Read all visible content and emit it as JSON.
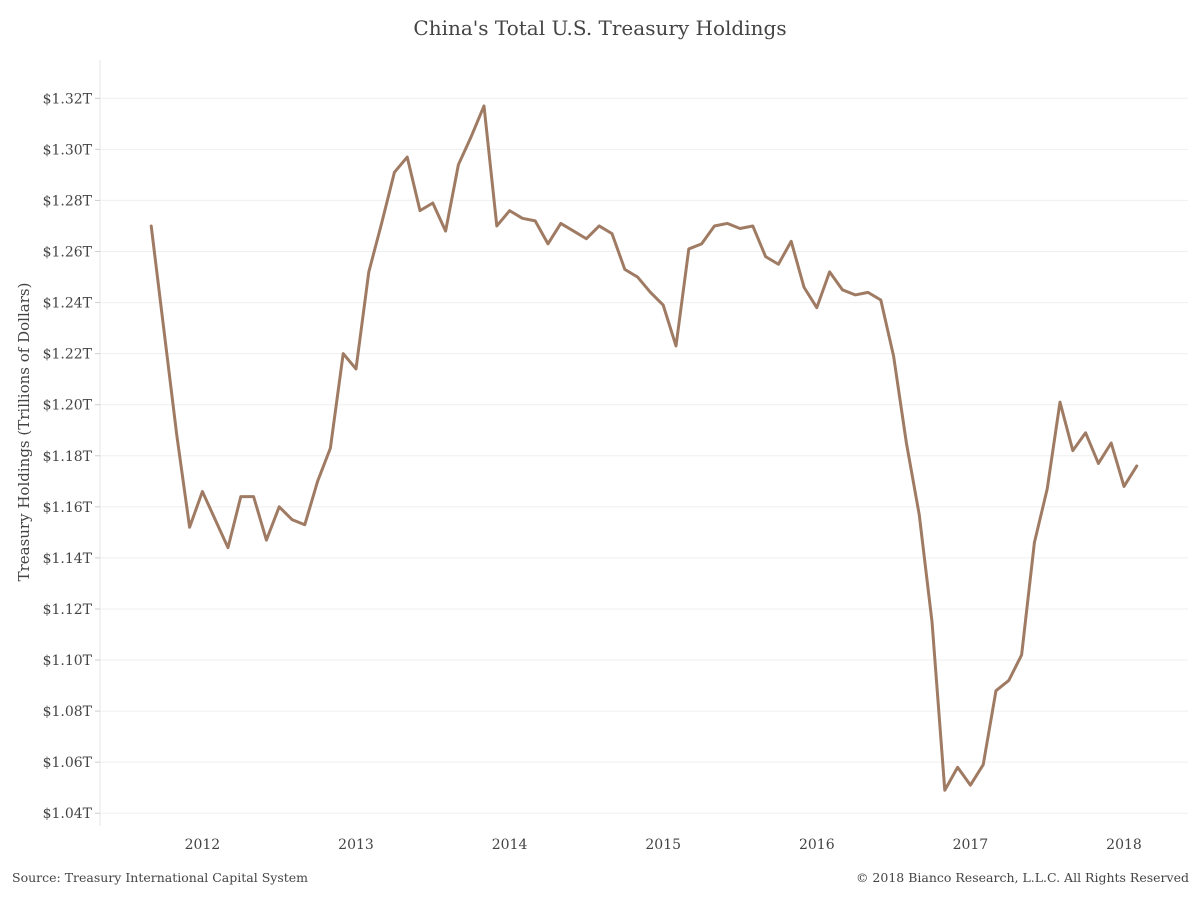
{
  "chart_data": {
    "type": "line",
    "title": "China's Total U.S. Treasury Holdings",
    "xlabel": "",
    "ylabel": "Treasury Holdings (Trillions of Dollars)",
    "x_tick_labels": [
      "2012",
      "2013",
      "2014",
      "2015",
      "2016",
      "2017",
      "2018"
    ],
    "y_tick_labels": [
      "$1.04T",
      "$1.06T",
      "$1.08T",
      "$1.10T",
      "$1.12T",
      "$1.14T",
      "$1.16T",
      "$1.18T",
      "$1.20T",
      "$1.22T",
      "$1.24T",
      "$1.26T",
      "$1.28T",
      "$1.30T",
      "$1.32T"
    ],
    "y_tick_values": [
      1.04,
      1.06,
      1.08,
      1.1,
      1.12,
      1.14,
      1.16,
      1.18,
      1.2,
      1.22,
      1.24,
      1.26,
      1.28,
      1.3,
      1.32
    ],
    "ylim": [
      1.035,
      1.335
    ],
    "xlim": [
      "2011-05",
      "2018-06"
    ],
    "grid": true,
    "series": [
      {
        "color": "#a07b64",
        "points": [
          [
            "2011-09",
            1.27
          ],
          [
            "2011-10",
            1.229
          ],
          [
            "2011-11",
            1.188
          ],
          [
            "2011-12",
            1.152
          ],
          [
            "2012-01",
            1.166
          ],
          [
            "2012-02",
            1.155
          ],
          [
            "2012-03",
            1.144
          ],
          [
            "2012-04",
            1.164
          ],
          [
            "2012-05",
            1.164
          ],
          [
            "2012-06",
            1.147
          ],
          [
            "2012-07",
            1.16
          ],
          [
            "2012-08",
            1.155
          ],
          [
            "2012-09",
            1.153
          ],
          [
            "2012-10",
            1.17
          ],
          [
            "2012-11",
            1.183
          ],
          [
            "2012-12",
            1.22
          ],
          [
            "2013-01",
            1.214
          ],
          [
            "2013-02",
            1.252
          ],
          [
            "2013-03",
            1.271
          ],
          [
            "2013-04",
            1.291
          ],
          [
            "2013-05",
            1.297
          ],
          [
            "2013-06",
            1.276
          ],
          [
            "2013-07",
            1.279
          ],
          [
            "2013-08",
            1.268
          ],
          [
            "2013-09",
            1.294
          ],
          [
            "2013-10",
            1.305
          ],
          [
            "2013-11",
            1.317
          ],
          [
            "2013-12",
            1.27
          ],
          [
            "2014-01",
            1.276
          ],
          [
            "2014-02",
            1.273
          ],
          [
            "2014-03",
            1.272
          ],
          [
            "2014-04",
            1.263
          ],
          [
            "2014-05",
            1.271
          ],
          [
            "2014-06",
            1.268
          ],
          [
            "2014-07",
            1.265
          ],
          [
            "2014-08",
            1.27
          ],
          [
            "2014-09",
            1.267
          ],
          [
            "2014-10",
            1.253
          ],
          [
            "2014-11",
            1.25
          ],
          [
            "2014-12",
            1.244
          ],
          [
            "2015-01",
            1.239
          ],
          [
            "2015-02",
            1.223
          ],
          [
            "2015-03",
            1.261
          ],
          [
            "2015-04",
            1.263
          ],
          [
            "2015-05",
            1.27
          ],
          [
            "2015-06",
            1.271
          ],
          [
            "2015-07",
            1.269
          ],
          [
            "2015-08",
            1.27
          ],
          [
            "2015-09",
            1.258
          ],
          [
            "2015-10",
            1.255
          ],
          [
            "2015-11",
            1.264
          ],
          [
            "2015-12",
            1.246
          ],
          [
            "2016-01",
            1.238
          ],
          [
            "2016-02",
            1.252
          ],
          [
            "2016-03",
            1.245
          ],
          [
            "2016-04",
            1.243
          ],
          [
            "2016-05",
            1.244
          ],
          [
            "2016-06",
            1.241
          ],
          [
            "2016-07",
            1.219
          ],
          [
            "2016-08",
            1.185
          ],
          [
            "2016-09",
            1.157
          ],
          [
            "2016-10",
            1.115
          ],
          [
            "2016-11",
            1.049
          ],
          [
            "2016-12",
            1.058
          ],
          [
            "2017-01",
            1.051
          ],
          [
            "2017-02",
            1.059
          ],
          [
            "2017-03",
            1.088
          ],
          [
            "2017-04",
            1.092
          ],
          [
            "2017-05",
            1.102
          ],
          [
            "2017-06",
            1.146
          ],
          [
            "2017-07",
            1.167
          ],
          [
            "2017-08",
            1.201
          ],
          [
            "2017-09",
            1.182
          ],
          [
            "2017-10",
            1.189
          ],
          [
            "2017-11",
            1.177
          ],
          [
            "2017-12",
            1.185
          ],
          [
            "2018-01",
            1.168
          ],
          [
            "2018-02",
            1.176
          ]
        ]
      }
    ]
  },
  "footer": {
    "source": "Source: Treasury International Capital System",
    "copyright": "© 2018 Bianco Research, L.L.C. All Rights Reserved"
  }
}
